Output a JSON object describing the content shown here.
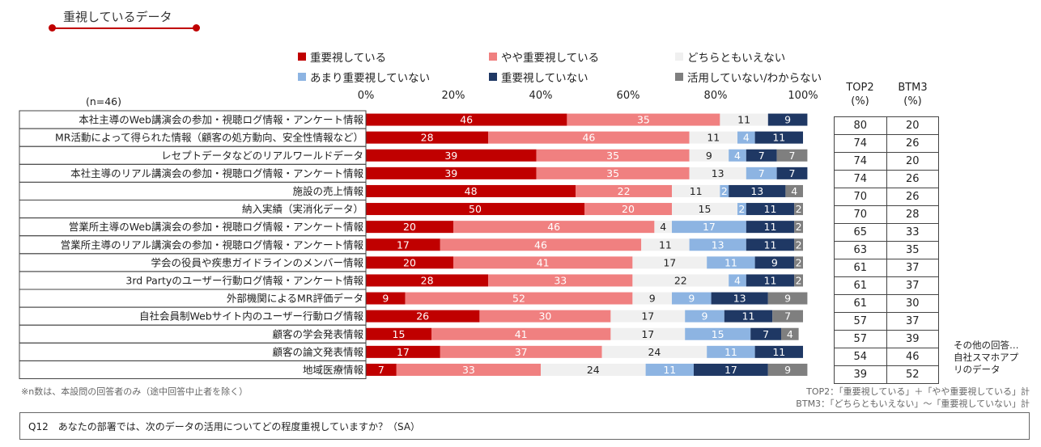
{
  "header": {
    "title": "重視しているデータ"
  },
  "legend": [
    {
      "label": "重要視している",
      "color": "#c00000"
    },
    {
      "label": "やや重要視している",
      "color": "#f08080"
    },
    {
      "label": "どちらともいえない",
      "color": "#f0f0f0"
    },
    {
      "label": "あまり重要視していない",
      "color": "#8db4e2"
    },
    {
      "label": "重要視していない",
      "color": "#1f3864"
    },
    {
      "label": "活用していない/わからない",
      "color": "#7f7f7f"
    }
  ],
  "n_label": "(n=46)",
  "table": {
    "headers": [
      {
        "line1": "TOP2",
        "line2": "(%)"
      },
      {
        "line1": "BTM3",
        "line2": "(%)"
      }
    ],
    "top2": [
      "80",
      "74",
      "74",
      "74",
      "70",
      "70",
      "65",
      "63",
      "61",
      "61",
      "61",
      "57",
      "57",
      "54",
      "39"
    ],
    "btm3": [
      "20",
      "26",
      "20",
      "26",
      "26",
      "28",
      "33",
      "35",
      "37",
      "37",
      "30",
      "37",
      "39",
      "46",
      "52"
    ]
  },
  "other_note": [
    "その他の回答…",
    "自社スマホアプ",
    "リのデータ"
  ],
  "footnotes": {
    "left": "※n数は、本設問の回答者のみ（途中回答中止者を除く）",
    "top2_def": "TOP2：「重要視している」＋「やや重要視している」計",
    "btm3_def": "BTM3：「どちらともいえない」〜「重要視していない」計"
  },
  "question": "Q12　あなたの部署では、次のデータの活用についてどの程度重視していますか？（SA）",
  "chart_data": {
    "type": "bar",
    "orientation": "horizontal",
    "stacked": true,
    "xlim": [
      0,
      100
    ],
    "x_ticks": [
      "0%",
      "20%",
      "40%",
      "60%",
      "80%",
      "100%"
    ],
    "categories": [
      "本社主導のWeb講演会の参加・視聴ログ情報・アンケート情報",
      "MR活動によって得られた情報（顧客の処方動向、安全性情報など）",
      "レセプトデータなどのリアルワールドデータ",
      "本社主導のリアル講演会の参加・視聴ログ情報・アンケート情報",
      "施設の売上情報",
      "納入実績（実消化データ）",
      "営業所主導のWeb講演会の参加・視聴ログ情報・アンケート情報",
      "営業所主導のリアル講演会の参加・視聴ログ情報・アンケート情報",
      "学会の役員や疾患ガイドラインのメンバー情報",
      "3rd Partyのユーザー行動ログ情報・アンケート情報",
      "外部機関によるMR評価データ",
      "自社会員制Webサイト内のユーザー行動ログ情報",
      "顧客の学会発表情報",
      "顧客の論文発表情報",
      "地域医療情報"
    ],
    "series": [
      {
        "name": "重要視している",
        "color": "#c00000",
        "label_color": "#ffffff",
        "values": [
          46,
          28,
          39,
          39,
          48,
          50,
          20,
          17,
          20,
          28,
          9,
          26,
          15,
          17,
          7
        ]
      },
      {
        "name": "やや重要視している",
        "color": "#f08080",
        "label_color": "#ffffff",
        "values": [
          35,
          46,
          35,
          35,
          22,
          20,
          46,
          46,
          41,
          33,
          52,
          30,
          41,
          37,
          33
        ]
      },
      {
        "name": "どちらともいえない",
        "color": "#f0f0f0",
        "label_color": "#222222",
        "values": [
          11,
          11,
          9,
          13,
          11,
          15,
          4,
          11,
          17,
          22,
          9,
          17,
          17,
          24,
          24
        ]
      },
      {
        "name": "あまり重要視していない",
        "color": "#8db4e2",
        "label_color": "#ffffff",
        "values": [
          0,
          4,
          4,
          7,
          2,
          2,
          17,
          13,
          11,
          4,
          9,
          9,
          15,
          11,
          11
        ]
      },
      {
        "name": "重要視していない",
        "color": "#1f3864",
        "label_color": "#ffffff",
        "values": [
          9,
          11,
          7,
          7,
          13,
          11,
          11,
          11,
          9,
          11,
          13,
          11,
          7,
          11,
          17
        ]
      },
      {
        "name": "活用していない/わからない",
        "color": "#7f7f7f",
        "label_color": "#ffffff",
        "values": [
          0,
          0,
          7,
          0,
          4,
          2,
          2,
          2,
          2,
          2,
          9,
          7,
          4,
          0,
          9
        ]
      }
    ]
  }
}
